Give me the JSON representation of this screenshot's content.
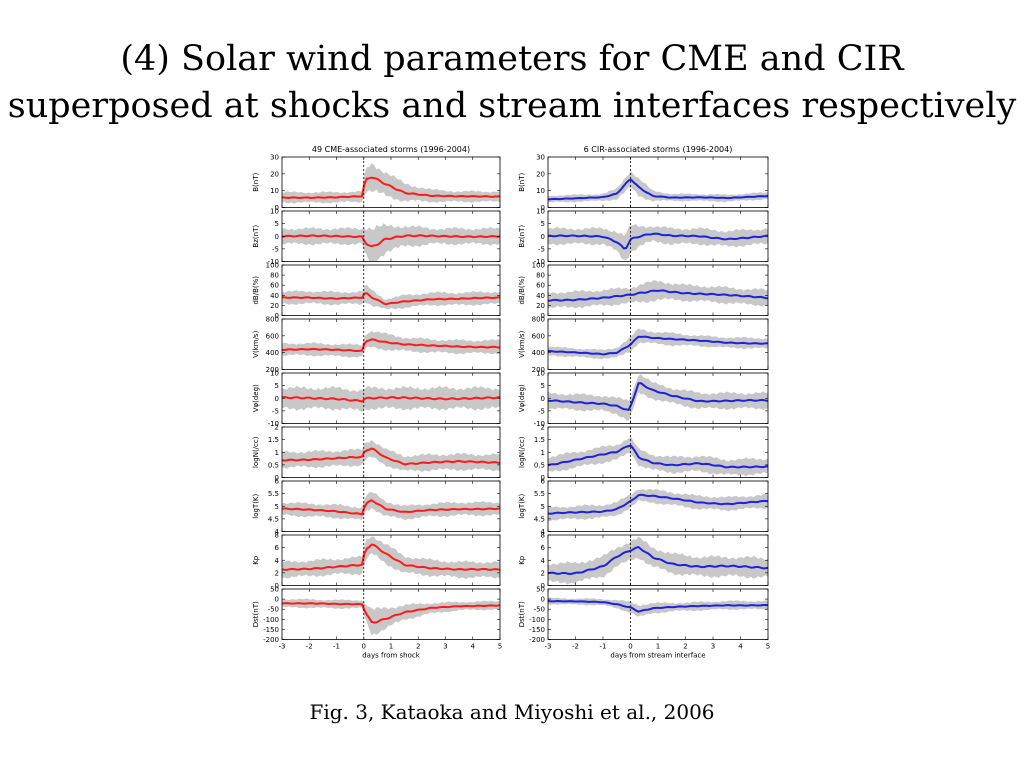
{
  "slide": {
    "title_line1": "(4) Solar wind parameters for CME and CIR",
    "title_line2": "superposed at shocks and stream interfaces respectively",
    "caption": "Fig. 3, Kataoka and Miyoshi et al., 2006"
  },
  "colors": {
    "cme": "#ff1a1a",
    "cir": "#2020e0",
    "band": "#c8c8c8"
  },
  "chart_data": [
    {
      "type": "line",
      "title": "49 CME-associated storms (1996-2004)",
      "xlabel": "days from shock",
      "x_range": [
        -3,
        5
      ],
      "x_ticks": [
        -3,
        -2,
        -1,
        0,
        1,
        2,
        3,
        4,
        5
      ],
      "event_line_x": 0,
      "color_key": "cme",
      "panels": [
        {
          "ylabel": "B(nT)",
          "ylim": [
            0,
            30
          ],
          "yticks": [
            0,
            10,
            20,
            30
          ],
          "x": [
            -3,
            -2,
            -1,
            -0.05,
            0.05,
            0.3,
            0.8,
            1.5,
            2.5,
            3.5,
            5
          ],
          "y": [
            6,
            6,
            6,
            6.5,
            16,
            18,
            14,
            9,
            7,
            6.5,
            6.5
          ],
          "band": [
            3,
            3,
            3,
            3,
            6,
            8,
            7,
            5,
            3.5,
            3,
            3
          ]
        },
        {
          "ylabel": "Bz(nT)",
          "ylim": [
            -10,
            10
          ],
          "yticks": [
            -10,
            -5,
            0,
            5,
            10
          ],
          "x": [
            -3,
            -2,
            -1,
            -0.05,
            0.05,
            0.3,
            0.8,
            1.5,
            2.5,
            3.5,
            5
          ],
          "y": [
            0,
            0,
            0,
            0,
            -2,
            -4,
            -1,
            0,
            0,
            0,
            0
          ],
          "band": [
            3,
            3,
            3,
            3,
            6,
            7,
            5,
            4,
            3,
            3,
            3
          ]
        },
        {
          "ylabel": "dB/B(%)",
          "ylim": [
            0,
            100
          ],
          "yticks": [
            0,
            20,
            40,
            60,
            80,
            100
          ],
          "x": [
            -3,
            -2,
            -1,
            -0.05,
            0.05,
            0.3,
            0.8,
            1.5,
            2.5,
            3.5,
            5
          ],
          "y": [
            35,
            36,
            34,
            35,
            45,
            35,
            22,
            28,
            33,
            33,
            35
          ],
          "band": [
            12,
            12,
            12,
            12,
            15,
            15,
            10,
            12,
            12,
            12,
            12
          ]
        },
        {
          "ylabel": "V(km/s)",
          "ylim": [
            200,
            800
          ],
          "yticks": [
            200,
            400,
            600,
            800
          ],
          "x": [
            -3,
            -2,
            -1,
            -0.05,
            0.05,
            0.3,
            0.8,
            1.5,
            2.5,
            3.5,
            5
          ],
          "y": [
            440,
            440,
            430,
            420,
            540,
            560,
            530,
            500,
            480,
            470,
            470
          ],
          "band": [
            70,
            70,
            70,
            70,
            90,
            100,
            90,
            80,
            75,
            75,
            75
          ]
        },
        {
          "ylabel": "Vφ(deg)",
          "ylim": [
            -10,
            10
          ],
          "yticks": [
            -10,
            -5,
            0,
            5,
            10
          ],
          "x": [
            -3,
            -2,
            -1,
            -0.05,
            0.05,
            0.3,
            0.8,
            1.5,
            2.5,
            3.5,
            5
          ],
          "y": [
            0,
            0,
            0,
            -1,
            0,
            0,
            0,
            0,
            0,
            0,
            0
          ],
          "band": [
            4,
            4,
            4,
            4,
            4,
            4,
            4,
            4,
            4,
            4,
            4
          ]
        },
        {
          "ylabel": "logN(/cc)",
          "ylim": [
            0,
            2
          ],
          "yticks": [
            0,
            0.5,
            1.0,
            1.5,
            2.0
          ],
          "x": [
            -3,
            -2,
            -1,
            -0.05,
            0.05,
            0.3,
            0.8,
            1.5,
            2.5,
            3.5,
            5
          ],
          "y": [
            0.7,
            0.72,
            0.75,
            0.8,
            1.05,
            1.15,
            0.8,
            0.55,
            0.6,
            0.62,
            0.6
          ],
          "band": [
            0.3,
            0.3,
            0.3,
            0.3,
            0.35,
            0.35,
            0.3,
            0.3,
            0.3,
            0.3,
            0.3
          ]
        },
        {
          "ylabel": "logT(K)",
          "ylim": [
            4,
            6
          ],
          "yticks": [
            4.0,
            4.5,
            5.0,
            5.5,
            6.0
          ],
          "x": [
            -3,
            -2,
            -1,
            -0.05,
            0.05,
            0.3,
            0.8,
            1.5,
            2.5,
            3.5,
            5
          ],
          "y": [
            4.9,
            4.85,
            4.8,
            4.7,
            5.1,
            5.25,
            4.9,
            4.75,
            4.85,
            4.9,
            4.9
          ],
          "band": [
            0.25,
            0.25,
            0.25,
            0.25,
            0.3,
            0.3,
            0.3,
            0.25,
            0.25,
            0.25,
            0.25
          ]
        },
        {
          "ylabel": "Kp",
          "ylim": [
            0,
            8
          ],
          "yticks": [
            0,
            2,
            4,
            6,
            8
          ],
          "x": [
            -3,
            -2,
            -1,
            -0.05,
            0.05,
            0.3,
            0.8,
            1.5,
            2.5,
            3.5,
            5
          ],
          "y": [
            2.5,
            2.7,
            3,
            3.2,
            5.5,
            6.5,
            5,
            3.3,
            2.8,
            2.5,
            2.5
          ],
          "band": [
            1.2,
            1.2,
            1.2,
            1.3,
            1.5,
            1.5,
            1.5,
            1.3,
            1.2,
            1.2,
            1.2
          ]
        },
        {
          "ylabel": "Dst(nT)",
          "ylim": [
            -200,
            50
          ],
          "yticks": [
            -200,
            -150,
            -100,
            -50,
            0,
            50
          ],
          "x": [
            -3,
            -2,
            -1,
            -0.05,
            0.05,
            0.3,
            0.8,
            1.5,
            2.5,
            3.5,
            5
          ],
          "y": [
            -20,
            -22,
            -25,
            -25,
            -60,
            -115,
            -95,
            -65,
            -45,
            -35,
            -30
          ],
          "band": [
            20,
            20,
            20,
            20,
            40,
            60,
            50,
            35,
            25,
            20,
            20
          ]
        }
      ]
    },
    {
      "type": "line",
      "title": "6 CIR-associated storms (1996-2004)",
      "xlabel": "days from stream interface",
      "x_range": [
        -3,
        5
      ],
      "x_ticks": [
        -3,
        -2,
        -1,
        0,
        1,
        2,
        3,
        4,
        5
      ],
      "event_line_x": 0,
      "color_key": "cir",
      "panels": [
        {
          "ylabel": "B(nT)",
          "ylim": [
            0,
            30
          ],
          "yticks": [
            0,
            10,
            20,
            30
          ],
          "x": [
            -3,
            -2,
            -1,
            -0.5,
            0,
            0.3,
            0.8,
            1.5,
            2.5,
            3.5,
            5
          ],
          "y": [
            5,
            5.5,
            6,
            8,
            17,
            12,
            7,
            6,
            6,
            5.5,
            7
          ],
          "band": [
            2,
            2,
            2,
            3,
            5,
            5,
            3,
            2,
            2,
            2,
            2
          ]
        },
        {
          "ylabel": "Bz(nT)",
          "ylim": [
            -10,
            10
          ],
          "yticks": [
            -10,
            -5,
            0,
            5,
            10
          ],
          "x": [
            -3,
            -2,
            -1,
            -0.5,
            -0.2,
            0,
            0.3,
            0.8,
            1.5,
            2.5,
            3.5,
            5
          ],
          "y": [
            0,
            0,
            0,
            -2,
            -5,
            -1,
            0,
            1,
            0,
            0,
            -1,
            0
          ],
          "band": [
            3,
            3,
            3,
            4,
            5,
            5,
            4,
            3,
            3,
            3,
            3,
            3
          ]
        },
        {
          "ylabel": "dB/B(%)",
          "ylim": [
            0,
            100
          ],
          "yticks": [
            0,
            20,
            40,
            60,
            80,
            100
          ],
          "x": [
            -3,
            -2,
            -1,
            0,
            0.5,
            1,
            2,
            3,
            4,
            5
          ],
          "y": [
            30,
            32,
            35,
            40,
            45,
            50,
            45,
            42,
            38,
            35
          ],
          "band": [
            15,
            15,
            15,
            15,
            18,
            18,
            15,
            15,
            15,
            15
          ]
        },
        {
          "ylabel": "V(km/s)",
          "ylim": [
            200,
            800
          ],
          "yticks": [
            200,
            400,
            600,
            800
          ],
          "x": [
            -3,
            -2,
            -1,
            -0.5,
            0,
            0.3,
            0.8,
            1.5,
            2.5,
            3.5,
            5
          ],
          "y": [
            420,
            400,
            380,
            400,
            500,
            600,
            580,
            560,
            540,
            520,
            510
          ],
          "band": [
            50,
            50,
            50,
            60,
            80,
            80,
            70,
            70,
            60,
            60,
            60
          ]
        },
        {
          "ylabel": "Vφ(deg)",
          "ylim": [
            -10,
            10
          ],
          "yticks": [
            -10,
            -5,
            0,
            5,
            10
          ],
          "x": [
            -3,
            -2,
            -1,
            -0.5,
            -0.05,
            0.3,
            0.8,
            1.5,
            2.5,
            3.5,
            5
          ],
          "y": [
            -1,
            -1.5,
            -2,
            -3,
            -5,
            6,
            3,
            1,
            -1,
            -1,
            -1
          ],
          "band": [
            3,
            3,
            3,
            3,
            4,
            4,
            3,
            3,
            3,
            3,
            3
          ]
        },
        {
          "ylabel": "logN(/cc)",
          "ylim": [
            0,
            2
          ],
          "yticks": [
            0,
            0.5,
            1.0,
            1.5,
            2.0
          ],
          "x": [
            -3,
            -2,
            -1,
            -0.5,
            0,
            0.3,
            0.8,
            1.5,
            2.5,
            3.5,
            5
          ],
          "y": [
            0.5,
            0.7,
            0.9,
            1.0,
            1.3,
            0.8,
            0.6,
            0.5,
            0.55,
            0.4,
            0.45
          ],
          "band": [
            0.3,
            0.3,
            0.3,
            0.3,
            0.3,
            0.3,
            0.3,
            0.3,
            0.3,
            0.3,
            0.3
          ]
        },
        {
          "ylabel": "logT(K)",
          "ylim": [
            4,
            6
          ],
          "yticks": [
            4.0,
            4.5,
            5.0,
            5.5,
            6.0
          ],
          "x": [
            -3,
            -2,
            -1,
            -0.5,
            0,
            0.3,
            0.8,
            1.5,
            2.5,
            3.5,
            5
          ],
          "y": [
            4.7,
            4.75,
            4.8,
            4.9,
            5.2,
            5.45,
            5.4,
            5.3,
            5.15,
            5.1,
            5.2
          ],
          "band": [
            0.25,
            0.25,
            0.25,
            0.25,
            0.25,
            0.25,
            0.25,
            0.25,
            0.25,
            0.25,
            0.25
          ]
        },
        {
          "ylabel": "Kp",
          "ylim": [
            0,
            8
          ],
          "yticks": [
            0,
            2,
            4,
            6,
            8
          ],
          "x": [
            -3,
            -2,
            -1,
            -0.5,
            0,
            0.3,
            0.8,
            1.5,
            2.5,
            3.5,
            5
          ],
          "y": [
            2,
            2,
            3,
            4.5,
            5.5,
            6,
            4.5,
            3.5,
            3,
            3,
            2.8
          ],
          "band": [
            1.5,
            1.5,
            1.5,
            1.5,
            1.5,
            1.5,
            1.5,
            1.5,
            1.5,
            1.5,
            1.5
          ]
        },
        {
          "ylabel": "Dst(nT)",
          "ylim": [
            -200,
            50
          ],
          "yticks": [
            -200,
            -150,
            -100,
            -50,
            0,
            50
          ],
          "x": [
            -3,
            -2,
            -1,
            -0.5,
            0,
            0.3,
            0.8,
            1.5,
            2.5,
            3.5,
            5
          ],
          "y": [
            -10,
            -12,
            -15,
            -25,
            -40,
            -60,
            -45,
            -40,
            -35,
            -30,
            -30
          ],
          "band": [
            15,
            15,
            15,
            20,
            25,
            30,
            25,
            20,
            20,
            20,
            20
          ]
        }
      ]
    }
  ]
}
